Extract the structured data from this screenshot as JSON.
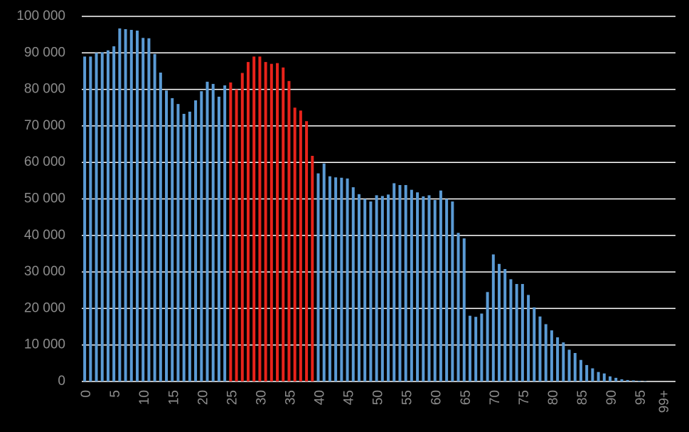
{
  "chart_data": {
    "type": "bar",
    "categories": [
      "0",
      null,
      null,
      null,
      null,
      "5",
      null,
      null,
      null,
      null,
      "10",
      null,
      null,
      null,
      null,
      "15",
      null,
      null,
      null,
      null,
      "20",
      null,
      null,
      null,
      null,
      "25",
      null,
      null,
      null,
      null,
      "30",
      null,
      null,
      null,
      null,
      "35",
      null,
      null,
      null,
      null,
      "40",
      null,
      null,
      null,
      null,
      "45",
      null,
      null,
      null,
      null,
      "50",
      null,
      null,
      null,
      null,
      "55",
      null,
      null,
      null,
      null,
      "60",
      null,
      null,
      null,
      null,
      "65",
      null,
      null,
      null,
      null,
      "70",
      null,
      null,
      null,
      null,
      "75",
      null,
      null,
      null,
      null,
      "80",
      null,
      null,
      null,
      null,
      "85",
      null,
      null,
      null,
      null,
      "90",
      null,
      null,
      null,
      null,
      "95",
      null,
      null,
      null,
      "99+"
    ],
    "values": [
      89000,
      89000,
      90000,
      90200,
      90700,
      91800,
      96700,
      96500,
      96300,
      96100,
      94100,
      94000,
      89700,
      84600,
      79700,
      77600,
      76000,
      73300,
      73900,
      77000,
      79500,
      82100,
      81500,
      78000,
      81100,
      81900,
      80000,
      84500,
      87500,
      89000,
      89000,
      87500,
      87000,
      87200,
      86000,
      82300,
      75000,
      74200,
      71300,
      61800,
      57000,
      59700,
      56200,
      55900,
      55800,
      55600,
      53200,
      51300,
      50000,
      49300,
      51000,
      50800,
      51200,
      54300,
      53800,
      53800,
      52500,
      51800,
      50700,
      51000,
      49700,
      52300,
      50000,
      49300,
      40700,
      39200,
      18000,
      17700,
      18600,
      24500,
      34800,
      32200,
      30800,
      28000,
      26700,
      26700,
      23700,
      20300,
      17800,
      15700,
      14000,
      12100,
      10700,
      8700,
      7800,
      5900,
      4500,
      3600,
      2600,
      2200,
      1400,
      1000,
      600,
      400,
      300,
      200,
      100,
      0,
      0,
      0
    ],
    "colors": [
      "#5b9bd5",
      "#5b9bd5",
      "#5b9bd5",
      "#5b9bd5",
      "#5b9bd5",
      "#5b9bd5",
      "#5b9bd5",
      "#5b9bd5",
      "#5b9bd5",
      "#5b9bd5",
      "#5b9bd5",
      "#5b9bd5",
      "#5b9bd5",
      "#5b9bd5",
      "#5b9bd5",
      "#5b9bd5",
      "#5b9bd5",
      "#5b9bd5",
      "#5b9bd5",
      "#5b9bd5",
      "#5b9bd5",
      "#5b9bd5",
      "#5b9bd5",
      "#5b9bd5",
      "#5b9bd5",
      "#e8231b",
      "#e8231b",
      "#e8231b",
      "#e8231b",
      "#e8231b",
      "#e8231b",
      "#e8231b",
      "#e8231b",
      "#e8231b",
      "#e8231b",
      "#e8231b",
      "#e8231b",
      "#e8231b",
      "#e8231b",
      "#e8231b",
      "#5b9bd5",
      "#5b9bd5",
      "#5b9bd5",
      "#5b9bd5",
      "#5b9bd5",
      "#5b9bd5",
      "#5b9bd5",
      "#5b9bd5",
      "#5b9bd5",
      "#5b9bd5",
      "#5b9bd5",
      "#5b9bd5",
      "#5b9bd5",
      "#5b9bd5",
      "#5b9bd5",
      "#5b9bd5",
      "#5b9bd5",
      "#5b9bd5",
      "#5b9bd5",
      "#5b9bd5",
      "#5b9bd5",
      "#5b9bd5",
      "#5b9bd5",
      "#5b9bd5",
      "#5b9bd5",
      "#5b9bd5",
      "#5b9bd5",
      "#5b9bd5",
      "#5b9bd5",
      "#5b9bd5",
      "#5b9bd5",
      "#5b9bd5",
      "#5b9bd5",
      "#5b9bd5",
      "#5b9bd5",
      "#5b9bd5",
      "#5b9bd5",
      "#5b9bd5",
      "#5b9bd5",
      "#5b9bd5",
      "#5b9bd5",
      "#5b9bd5",
      "#5b9bd5",
      "#5b9bd5",
      "#5b9bd5",
      "#5b9bd5",
      "#5b9bd5",
      "#5b9bd5",
      "#5b9bd5",
      "#5b9bd5",
      "#5b9bd5",
      "#5b9bd5",
      "#5b9bd5",
      "#5b9bd5",
      "#5b9bd5",
      "#5b9bd5",
      "#5b9bd5",
      "#5b9bd5",
      "#5b9bd5",
      "#5b9bd5"
    ],
    "ylim": [
      0,
      100000
    ],
    "yticks": [
      0,
      {
        "value": 10000,
        "label": "10 000"
      },
      {
        "value": 20000,
        "label": "20 000"
      },
      {
        "value": 30000,
        "label": "30 000"
      },
      {
        "value": 40000,
        "label": "40 000"
      },
      {
        "value": 50000,
        "label": "50 000"
      },
      {
        "value": 60000,
        "label": "60 000"
      },
      {
        "value": 70000,
        "label": "70 000"
      },
      {
        "value": 80000,
        "label": "80 000"
      },
      {
        "value": 90000,
        "label": "90 000"
      },
      {
        "value": 100000,
        "label": "100 000"
      }
    ],
    "grid": true
  }
}
